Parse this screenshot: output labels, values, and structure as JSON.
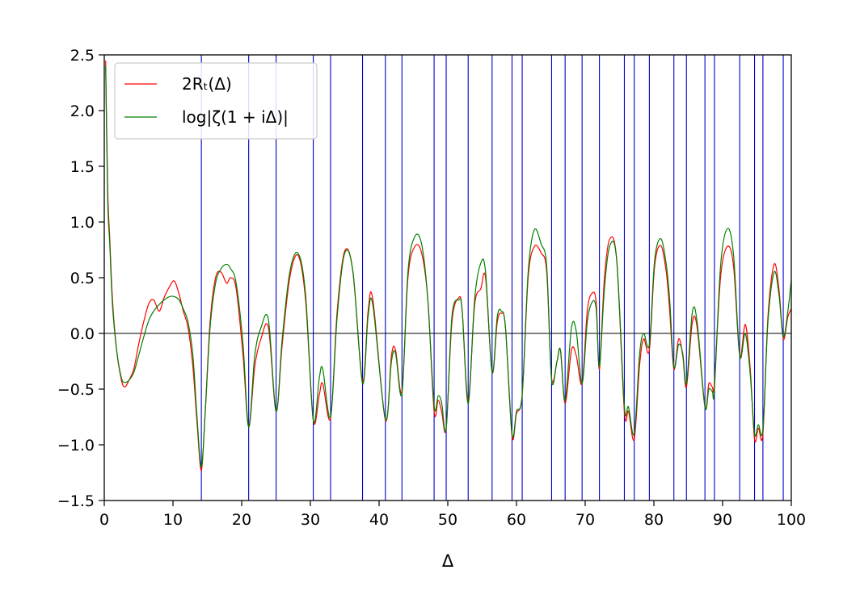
{
  "chart_data": {
    "type": "line",
    "title": "",
    "xlabel": "Δ",
    "ylabel": "",
    "xlim": [
      0,
      100
    ],
    "ylim": [
      -1.5,
      2.5
    ],
    "x_ticks": [
      0,
      10,
      20,
      30,
      40,
      50,
      60,
      70,
      80,
      90,
      100
    ],
    "x_tick_labels": [
      "0",
      "10",
      "20",
      "30",
      "40",
      "50",
      "60",
      "70",
      "80",
      "90",
      "100"
    ],
    "y_ticks": [
      -1.5,
      -1.0,
      -0.5,
      0.0,
      0.5,
      1.0,
      1.5,
      2.0,
      2.5
    ],
    "y_tick_labels": [
      "−1.5",
      "−1.0",
      "−0.5",
      "0.0",
      "0.5",
      "1.0",
      "1.5",
      "2.0",
      "2.5"
    ],
    "grid": false,
    "legend_position": "top-left",
    "zero_line": 0.0,
    "vertical_lines": {
      "color": "#0000cc",
      "x": [
        14.13,
        21.02,
        25.01,
        30.42,
        32.94,
        37.59,
        40.92,
        43.33,
        48.01,
        49.77,
        52.97,
        56.45,
        59.35,
        60.83,
        65.11,
        67.08,
        69.55,
        72.07,
        75.7,
        77.14,
        79.34,
        82.91,
        84.74,
        87.43,
        88.81,
        92.49,
        94.65,
        95.87,
        98.83
      ]
    },
    "series": [
      {
        "name": "2R_t(Δ)",
        "legend_label": "2Rₜ(Δ)",
        "color": "#ff0000",
        "x": [
          0.2,
          0.5,
          0.8,
          1.2,
          1.8,
          2.5,
          3.0,
          3.6,
          4.3,
          5.0,
          5.8,
          6.5,
          7.2,
          8.0,
          8.7,
          9.5,
          10.2,
          10.9,
          11.5,
          12.2,
          12.9,
          13.5,
          14.13,
          14.7,
          15.4,
          16.2,
          17.0,
          17.8,
          18.4,
          19.2,
          20.2,
          21.02,
          21.9,
          22.8,
          23.9,
          25.01,
          25.9,
          27.0,
          28.2,
          29.3,
          30.42,
          31.3,
          31.8,
          32.94,
          33.9,
          35.0,
          36.2,
          37.59,
          38.4,
          39.1,
          40.92,
          41.8,
          42.4,
          43.33,
          44.2,
          45.2,
          46.2,
          47.1,
          48.01,
          48.6,
          49.1,
          49.77,
          50.6,
          51.6,
          52.1,
          52.97,
          53.9,
          54.8,
          55.5,
          56.45,
          57.2,
          57.8,
          58.4,
          59.35,
          60.0,
          60.83,
          61.7,
          62.6,
          63.6,
          64.4,
          65.11,
          65.9,
          66.4,
          67.08,
          68.0,
          68.7,
          69.55,
          70.3,
          71.0,
          71.6,
          72.07,
          72.8,
          73.6,
          74.6,
          75.7,
          76.3,
          77.14,
          77.9,
          78.5,
          79.34,
          80.1,
          81.0,
          81.8,
          82.3,
          82.91,
          83.6,
          84.2,
          84.74,
          85.6,
          86.3,
          87.43,
          88.0,
          88.5,
          88.81,
          89.7,
          90.7,
          91.6,
          92.49,
          93.3,
          94.0,
          94.65,
          95.2,
          95.87,
          96.6,
          97.5,
          98.2,
          98.83,
          99.5,
          100.0
        ],
        "y": [
          2.45,
          1.3,
          0.85,
          0.3,
          -0.15,
          -0.42,
          -0.48,
          -0.42,
          -0.32,
          -0.1,
          0.12,
          0.27,
          0.3,
          0.2,
          0.32,
          0.42,
          0.47,
          0.35,
          0.2,
          0.05,
          -0.3,
          -0.8,
          -1.23,
          -0.7,
          0.1,
          0.5,
          0.55,
          0.45,
          0.5,
          0.4,
          -0.2,
          -0.84,
          -0.3,
          -0.05,
          0.05,
          -0.7,
          -0.1,
          0.5,
          0.7,
          0.3,
          -0.78,
          -0.55,
          -0.45,
          -0.76,
          0.2,
          0.74,
          0.55,
          -0.43,
          0.2,
          0.3,
          -0.78,
          -0.2,
          -0.15,
          -0.52,
          0.5,
          0.78,
          0.72,
          0.3,
          -0.7,
          -0.6,
          -0.7,
          -0.85,
          0.1,
          0.32,
          0.2,
          -0.6,
          0.25,
          0.4,
          0.5,
          -0.35,
          0.1,
          0.18,
          0.05,
          -0.92,
          -0.72,
          -0.55,
          0.5,
          0.78,
          0.72,
          0.55,
          -0.4,
          -0.25,
          -0.15,
          -0.63,
          -0.15,
          -0.2,
          -0.45,
          0.2,
          0.36,
          0.28,
          -0.32,
          0.5,
          0.85,
          0.65,
          -0.7,
          -0.7,
          -0.95,
          -0.3,
          -0.05,
          -0.15,
          0.6,
          0.79,
          0.55,
          0.2,
          -0.32,
          -0.05,
          -0.2,
          -0.48,
          0.1,
          0.05,
          -0.66,
          -0.45,
          -0.48,
          -0.45,
          0.5,
          0.78,
          0.6,
          -0.2,
          0.08,
          -0.3,
          -0.95,
          -0.85,
          -0.9,
          0.15,
          0.62,
          0.4,
          -0.05,
          0.15,
          0.22
        ]
      },
      {
        "name": "log|ζ(1+iΔ)|",
        "legend_label": "log|ζ(1 + iΔ)|",
        "color": "#008000",
        "x": [
          0.2,
          0.5,
          0.8,
          1.2,
          1.8,
          2.5,
          3.0,
          3.6,
          4.3,
          5.0,
          5.8,
          6.5,
          7.2,
          8.0,
          8.7,
          9.5,
          10.2,
          10.9,
          11.5,
          12.2,
          12.9,
          13.5,
          14.13,
          14.7,
          15.4,
          16.2,
          17.0,
          17.8,
          18.4,
          19.2,
          20.2,
          21.02,
          21.9,
          22.8,
          23.9,
          25.01,
          25.9,
          27.0,
          28.2,
          29.3,
          30.42,
          31.3,
          31.8,
          32.94,
          33.9,
          35.0,
          36.2,
          37.59,
          38.4,
          39.1,
          40.92,
          41.8,
          42.4,
          43.33,
          44.2,
          45.2,
          46.2,
          47.1,
          48.01,
          48.6,
          49.1,
          49.77,
          50.6,
          51.6,
          52.1,
          52.97,
          53.9,
          54.8,
          55.5,
          56.45,
          57.2,
          57.8,
          58.4,
          59.35,
          60.0,
          60.83,
          61.7,
          62.6,
          63.6,
          64.4,
          65.11,
          65.9,
          66.4,
          67.08,
          68.0,
          68.7,
          69.55,
          70.3,
          71.0,
          71.6,
          72.07,
          72.8,
          73.6,
          74.6,
          75.7,
          76.3,
          77.14,
          77.9,
          78.5,
          79.34,
          80.1,
          81.0,
          81.8,
          82.3,
          82.91,
          83.6,
          84.2,
          84.74,
          85.6,
          86.3,
          87.43,
          88.0,
          88.5,
          88.81,
          89.7,
          90.7,
          91.6,
          92.49,
          93.3,
          94.0,
          94.65,
          95.2,
          95.87,
          96.6,
          97.5,
          98.2,
          98.83,
          99.5,
          100.0
        ],
        "y": [
          2.4,
          1.2,
          0.8,
          0.25,
          -0.15,
          -0.4,
          -0.44,
          -0.42,
          -0.35,
          -0.2,
          -0.02,
          0.12,
          0.2,
          0.26,
          0.3,
          0.33,
          0.33,
          0.3,
          0.22,
          0.1,
          -0.2,
          -0.75,
          -1.2,
          -0.7,
          0.05,
          0.45,
          0.58,
          0.62,
          0.58,
          0.45,
          -0.1,
          -0.84,
          -0.2,
          0.05,
          0.12,
          -0.7,
          -0.05,
          0.55,
          0.72,
          0.35,
          -0.78,
          -0.4,
          -0.32,
          -0.75,
          0.15,
          0.72,
          0.55,
          -0.45,
          0.15,
          0.25,
          -0.77,
          -0.25,
          -0.18,
          -0.54,
          0.55,
          0.87,
          0.8,
          0.3,
          -0.65,
          -0.56,
          -0.62,
          -0.85,
          0.15,
          0.3,
          0.2,
          -0.63,
          0.3,
          0.63,
          0.55,
          -0.35,
          0.15,
          0.2,
          0.05,
          -0.9,
          -0.7,
          -0.55,
          0.55,
          0.93,
          0.8,
          0.6,
          -0.42,
          -0.25,
          -0.15,
          -0.6,
          0.05,
          0.02,
          -0.45,
          0.1,
          0.28,
          0.22,
          -0.3,
          0.4,
          0.79,
          0.65,
          -0.65,
          -0.66,
          -0.9,
          -0.2,
          0.0,
          -0.1,
          0.65,
          0.85,
          0.62,
          0.3,
          -0.3,
          -0.1,
          -0.18,
          -0.45,
          0.19,
          0.1,
          -0.66,
          -0.5,
          -0.52,
          -0.5,
          0.6,
          0.94,
          0.7,
          -0.2,
          0.0,
          -0.35,
          -0.9,
          -0.82,
          -0.86,
          0.1,
          0.55,
          0.35,
          -0.03,
          0.2,
          0.48
        ]
      }
    ]
  }
}
